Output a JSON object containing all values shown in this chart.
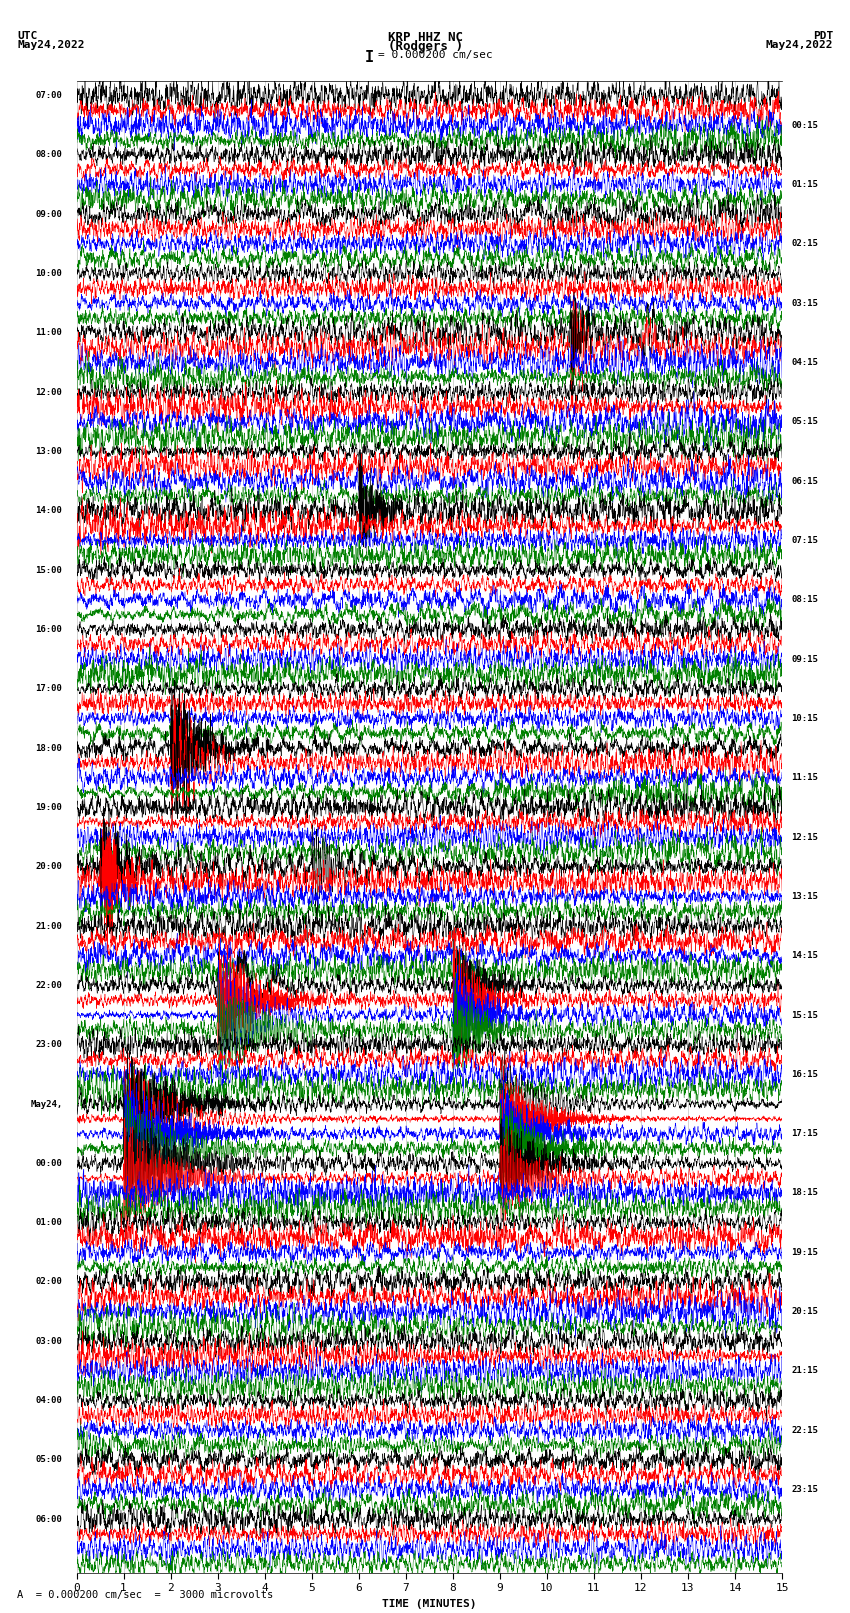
{
  "title_line1": "KRP HHZ NC",
  "title_line2": "(Rodgers )",
  "scale_label": "I = 0.000200 cm/sec",
  "left_header_line1": "UTC",
  "left_header_line2": "May24,2022",
  "right_header_line1": "PDT",
  "right_header_line2": "May24,2022",
  "footer_note": "A  = 0.000200 cm/sec  =   3000 microvolts",
  "xlabel": "TIME (MINUTES)",
  "utc_labels": [
    "07:00",
    "08:00",
    "09:00",
    "10:00",
    "11:00",
    "12:00",
    "13:00",
    "14:00",
    "15:00",
    "16:00",
    "17:00",
    "18:00",
    "19:00",
    "20:00",
    "21:00",
    "22:00",
    "23:00",
    "May24,",
    "00:00",
    "01:00",
    "02:00",
    "03:00",
    "04:00",
    "05:00",
    "06:00"
  ],
  "pdt_labels": [
    "00:15",
    "01:15",
    "02:15",
    "03:15",
    "04:15",
    "05:15",
    "06:15",
    "07:15",
    "08:15",
    "09:15",
    "10:15",
    "11:15",
    "12:15",
    "13:15",
    "14:15",
    "15:15",
    "16:15",
    "17:15",
    "18:15",
    "19:15",
    "20:15",
    "21:15",
    "22:15",
    "23:15"
  ],
  "colors": [
    "black",
    "red",
    "blue",
    "green"
  ],
  "n_rows": 100,
  "n_minutes": 15,
  "fig_width": 8.5,
  "fig_height": 16.13,
  "background": "white",
  "trace_amplitude": 0.38,
  "samples": 3000
}
